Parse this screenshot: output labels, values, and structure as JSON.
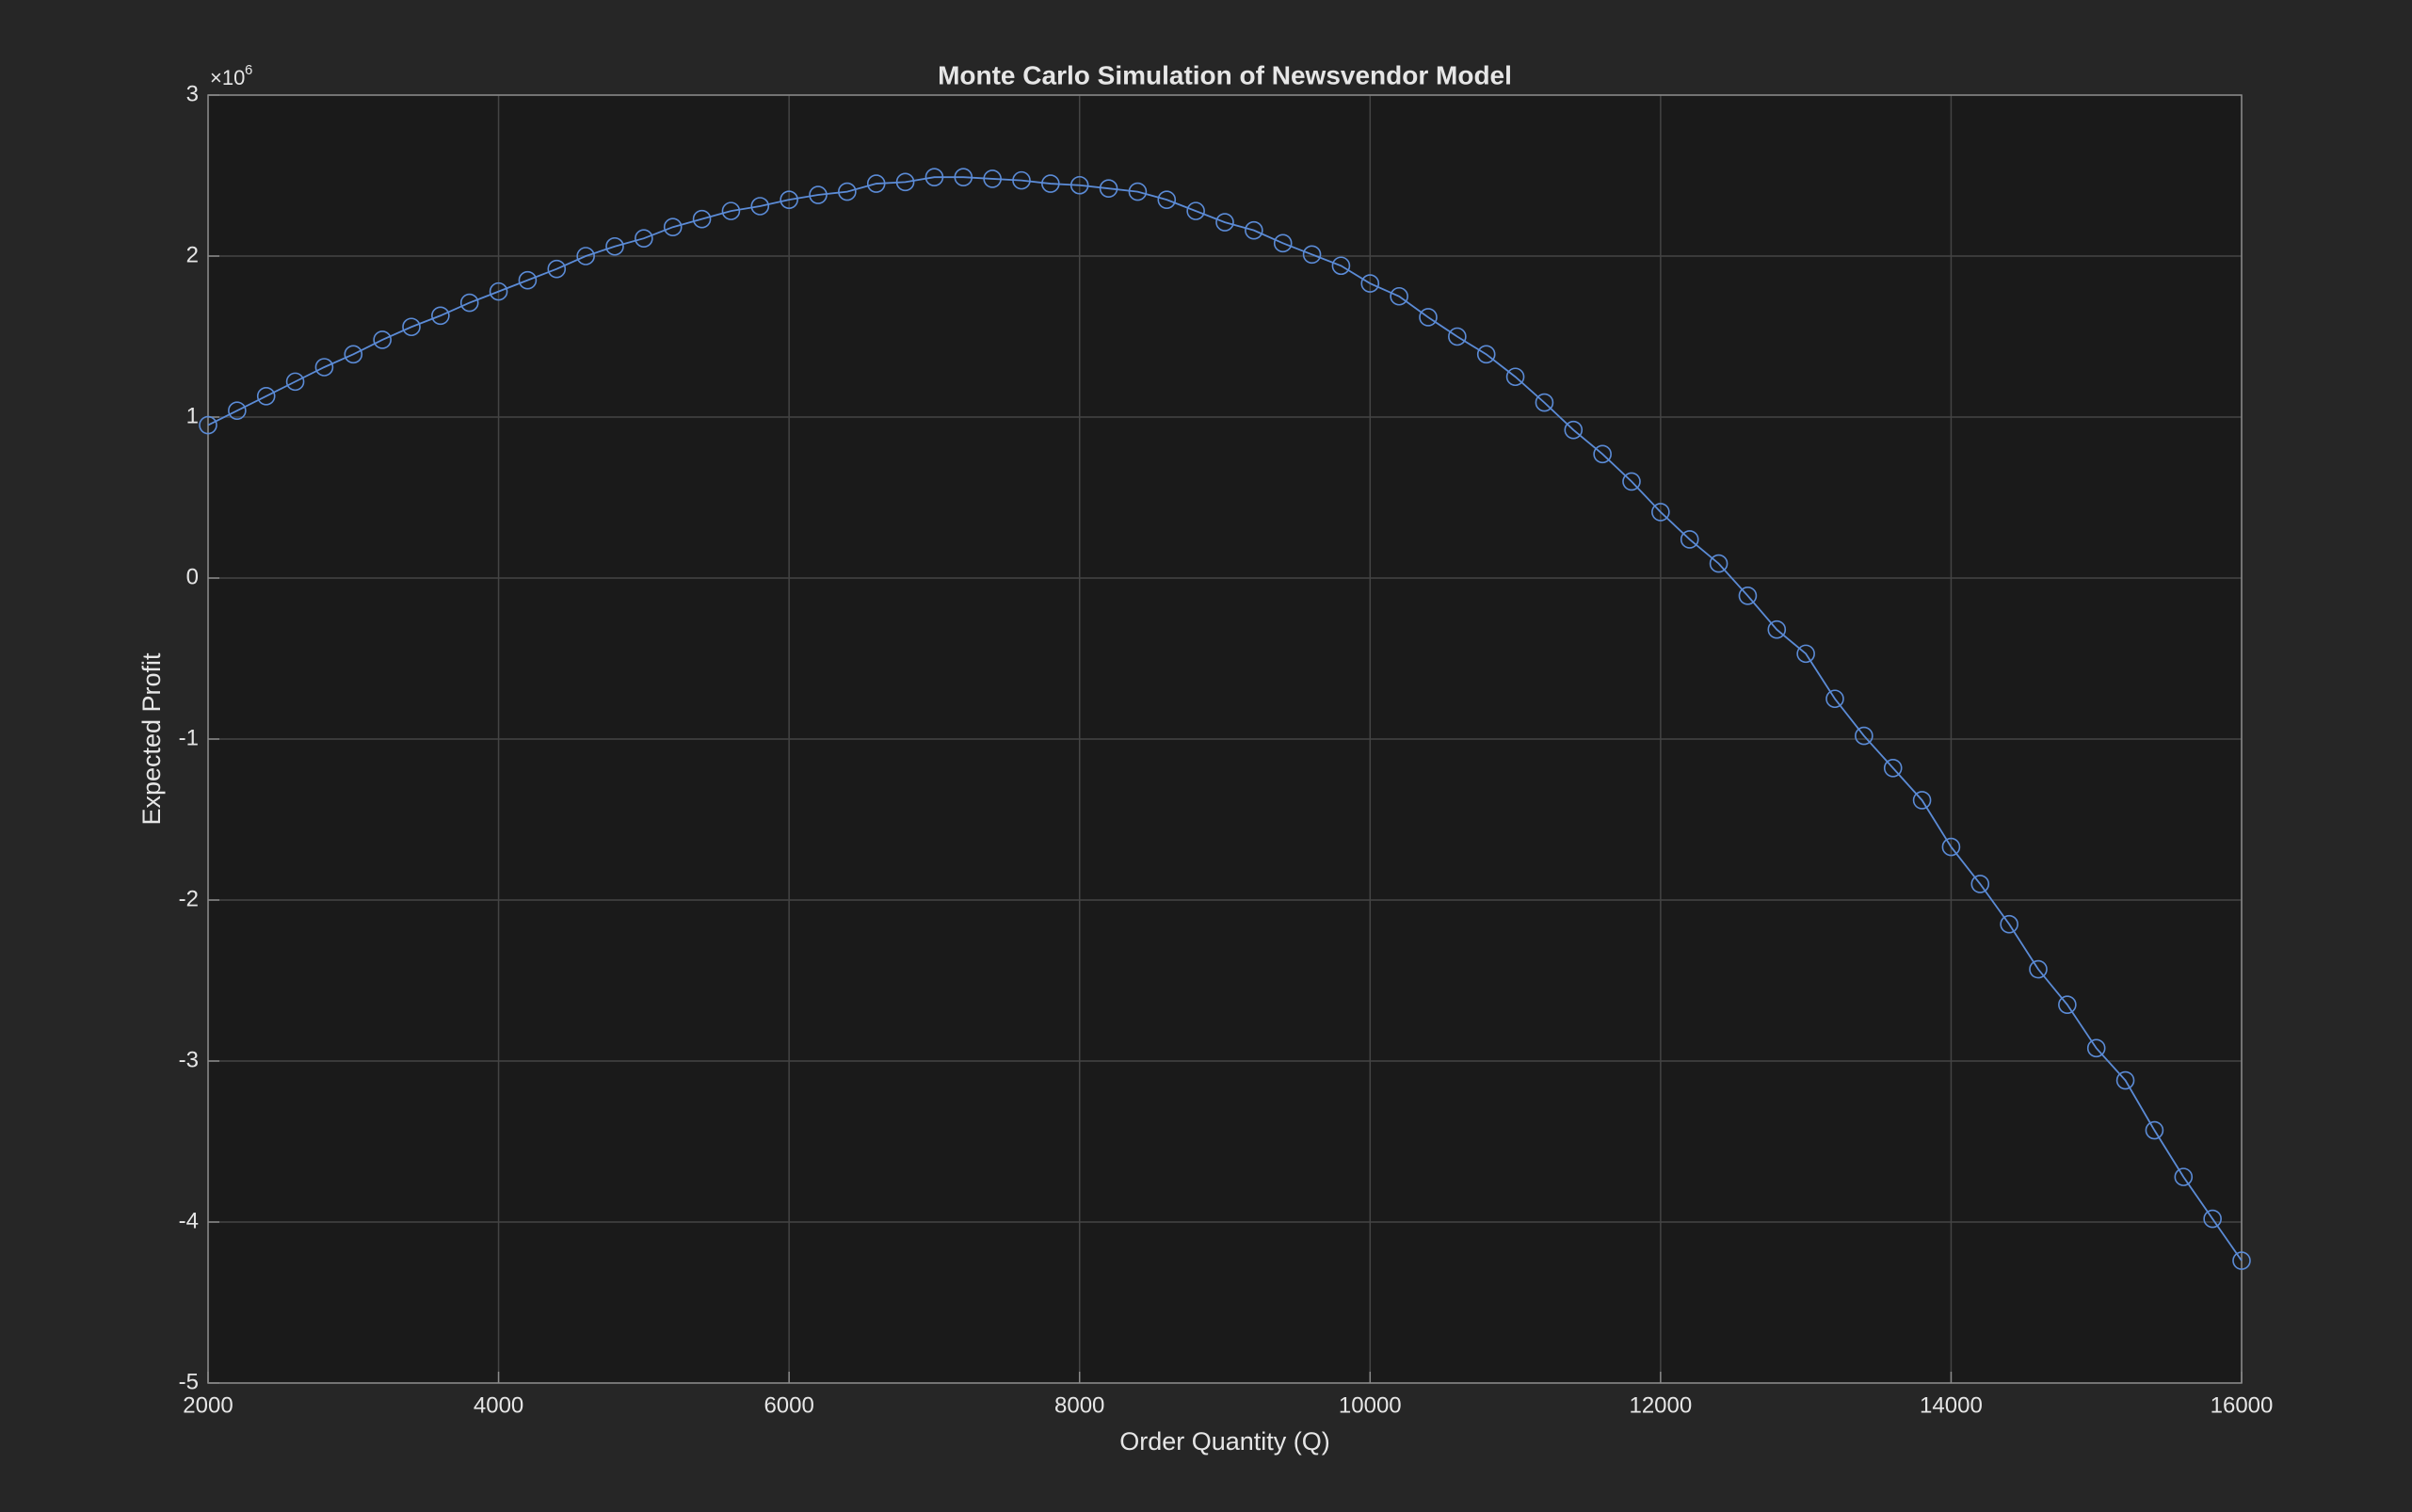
{
  "chart_data": {
    "type": "line",
    "title": "Monte Carlo Simulation of Newsvendor Model",
    "xlabel": "Order Quantity (Q)",
    "ylabel": "Expected Profit",
    "y_multiplier": "×10",
    "y_multiplier_exponent": "6",
    "x": [
      2000,
      2200,
      2400,
      2600,
      2800,
      3000,
      3200,
      3400,
      3600,
      3800,
      4000,
      4200,
      4400,
      4600,
      4800,
      5000,
      5200,
      5400,
      5600,
      5800,
      6000,
      6200,
      6400,
      6600,
      6800,
      7000,
      7200,
      7400,
      7600,
      7800,
      8000,
      8200,
      8400,
      8600,
      8800,
      9000,
      9200,
      9400,
      9600,
      9800,
      10000,
      10200,
      10400,
      10600,
      10800,
      11000,
      11200,
      11400,
      11600,
      11800,
      12000,
      12200,
      12400,
      12600,
      12800,
      13000,
      13200,
      13400,
      13600,
      13800,
      14000,
      14200,
      14400,
      14600,
      14800,
      15000,
      15200,
      15400,
      15600,
      15800,
      16000
    ],
    "series": [
      {
        "name": "Expected Profit",
        "color": "#5b8bd6",
        "values": [
          0.95,
          1.04,
          1.13,
          1.22,
          1.31,
          1.39,
          1.48,
          1.56,
          1.63,
          1.71,
          1.78,
          1.85,
          1.92,
          2.0,
          2.06,
          2.11,
          2.18,
          2.23,
          2.28,
          2.31,
          2.35,
          2.38,
          2.4,
          2.45,
          2.46,
          2.49,
          2.49,
          2.48,
          2.47,
          2.45,
          2.44,
          2.42,
          2.4,
          2.35,
          2.28,
          2.21,
          2.16,
          2.08,
          2.01,
          1.94,
          1.83,
          1.75,
          1.62,
          1.5,
          1.39,
          1.25,
          1.09,
          0.92,
          0.77,
          0.6,
          0.41,
          0.24,
          0.09,
          -0.11,
          -0.32,
          -0.47,
          -0.75,
          -0.98,
          -1.18,
          -1.38,
          -1.67,
          -1.9,
          -2.15,
          -2.43,
          -2.65,
          -2.92,
          -3.12,
          -3.43,
          -3.72,
          -3.98,
          -4.24
        ]
      }
    ],
    "xlim": [
      2000,
      16000
    ],
    "xticks": [
      2000,
      4000,
      6000,
      8000,
      10000,
      12000,
      14000,
      16000
    ],
    "ylim": [
      -5,
      3
    ],
    "yticks": [
      -5,
      -4,
      -3,
      -2,
      -1,
      0,
      1,
      2,
      3
    ],
    "grid": true
  }
}
